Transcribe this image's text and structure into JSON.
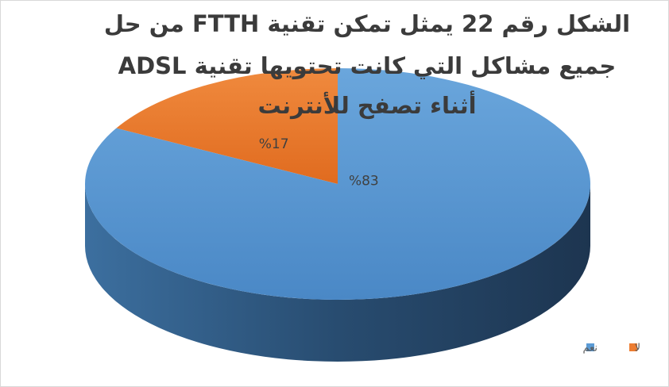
{
  "chart_data": {
    "type": "pie",
    "title": [
      "الشكل رقم 22 يمثل تمكن تقنية FTTH من حل",
      "جميع مشاكل التي كانت تحتويها تقنية ADSL",
      "أثناء تصفح للأنترنت"
    ],
    "categories": [
      "نعم",
      "لا"
    ],
    "values": [
      83,
      17
    ],
    "value_labels": [
      "%83",
      "%17"
    ],
    "colors": [
      "#5b9bd5",
      "#ed7d31"
    ],
    "legend": "bottom-right"
  }
}
